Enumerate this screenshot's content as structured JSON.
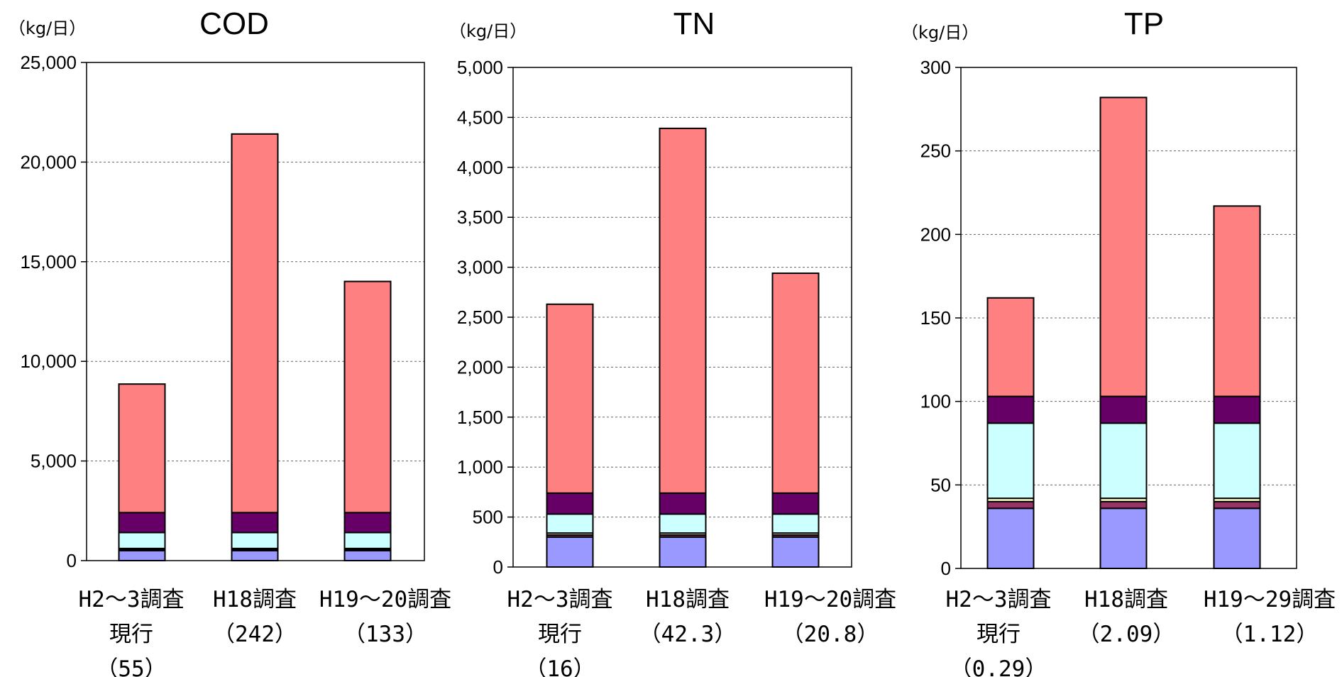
{
  "chart_data": [
    {
      "type": "bar",
      "stacked": true,
      "title": "COD",
      "unit": "（kg/日）",
      "ylim": [
        0,
        25000
      ],
      "yticks": [
        0,
        5000,
        10000,
        15000,
        20000,
        25000
      ],
      "ytick_labels": [
        "0",
        "5,000",
        "10,000",
        "15,000",
        "20,000",
        "25,000"
      ],
      "grid": true,
      "categories": [
        [
          "H2～3調査",
          "現行",
          "（55）"
        ],
        [
          "H18調査",
          "（242）"
        ],
        [
          "H19～20調査",
          "（133）"
        ]
      ],
      "series": [
        {
          "values": [
            500,
            500,
            500
          ],
          "color": "#9999ff"
        },
        {
          "values": [
            50,
            50,
            50
          ],
          "color": "#993366"
        },
        {
          "values": [
            60,
            60,
            60
          ],
          "color": "#ffffcc"
        },
        {
          "values": [
            800,
            800,
            800
          ],
          "color": "#ccffff"
        },
        {
          "values": [
            1000,
            1000,
            1000
          ],
          "color": "#660066"
        },
        {
          "values": [
            6450,
            19000,
            11600
          ],
          "color": "#ff8080"
        }
      ]
    },
    {
      "type": "bar",
      "stacked": true,
      "title": "TN",
      "unit": "（kg/日）",
      "ylim": [
        0,
        5000
      ],
      "yticks": [
        0,
        500,
        1000,
        1500,
        2000,
        2500,
        3000,
        3500,
        4000,
        4500,
        5000
      ],
      "ytick_labels": [
        "0",
        "500",
        "1,000",
        "1,500",
        "2,000",
        "2,500",
        "3,000",
        "3,500",
        "4,000",
        "4,500",
        "5,000"
      ],
      "grid": true,
      "categories": [
        [
          "H2～3調査",
          "現行",
          "（16）"
        ],
        [
          "H18調査",
          "（42.3）"
        ],
        [
          "H19～20調査",
          "（20.8）"
        ]
      ],
      "series": [
        {
          "values": [
            300,
            300,
            300
          ],
          "color": "#9999ff"
        },
        {
          "values": [
            20,
            20,
            20
          ],
          "color": "#993366"
        },
        {
          "values": [
            20,
            20,
            20
          ],
          "color": "#ffffcc"
        },
        {
          "values": [
            190,
            190,
            190
          ],
          "color": "#ccffff"
        },
        {
          "values": [
            210,
            210,
            210
          ],
          "color": "#660066"
        },
        {
          "values": [
            1890,
            3650,
            2200
          ],
          "color": "#ff8080"
        }
      ]
    },
    {
      "type": "bar",
      "stacked": true,
      "title": "TP",
      "unit": "（kg/日）",
      "ylim": [
        0,
        300
      ],
      "yticks": [
        0,
        50,
        100,
        150,
        200,
        250,
        300
      ],
      "ytick_labels": [
        "0",
        "50",
        "100",
        "150",
        "200",
        "250",
        "300"
      ],
      "grid": true,
      "categories": [
        [
          "H2～3調査",
          "現行",
          "（0.29）"
        ],
        [
          "H18調査",
          "（2.09）"
        ],
        [
          "H19～29調査",
          "（1.12）"
        ]
      ],
      "series": [
        {
          "values": [
            36,
            36,
            36
          ],
          "color": "#9999ff"
        },
        {
          "values": [
            4,
            4,
            4
          ],
          "color": "#993366"
        },
        {
          "values": [
            2,
            2,
            2
          ],
          "color": "#ffffcc"
        },
        {
          "values": [
            45,
            45,
            45
          ],
          "color": "#ccffff"
        },
        {
          "values": [
            16,
            16,
            16
          ],
          "color": "#660066"
        },
        {
          "values": [
            59,
            179,
            114
          ],
          "color": "#ff8080"
        }
      ]
    }
  ]
}
